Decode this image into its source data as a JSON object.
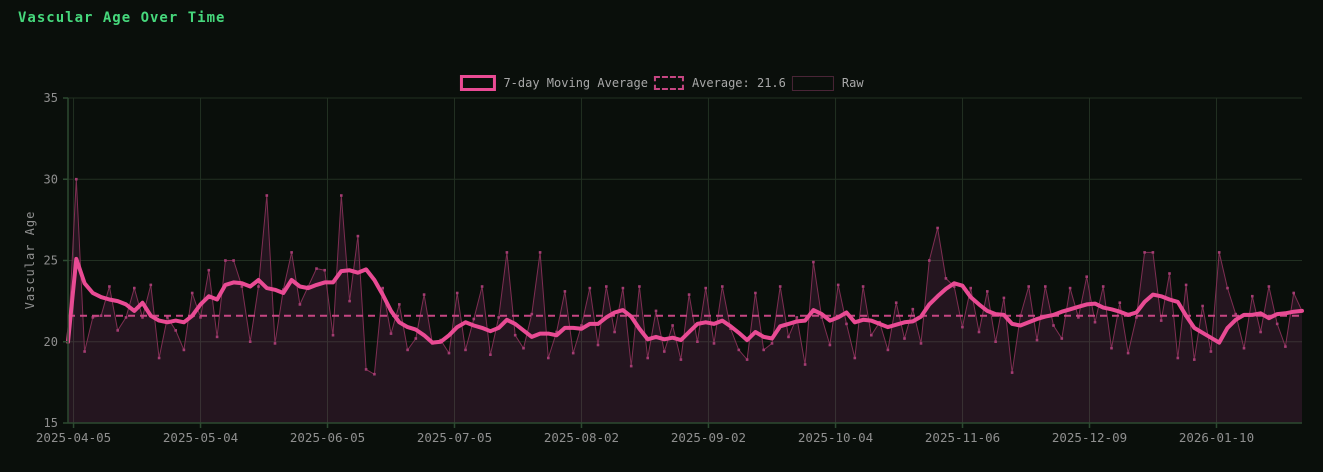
{
  "title": "Vascular Age Over Time",
  "legend": [
    {
      "label": "7-day Moving Average",
      "swatch": "solid"
    },
    {
      "label": "Average: 21.6",
      "swatch": "dashed"
    },
    {
      "label": "Raw",
      "swatch": "raw"
    }
  ],
  "colors": {
    "background": "#0a0f0b",
    "title": "#46d87c",
    "grid": "#223022",
    "spine": "#2d4a31",
    "tick_label": "#8f8f8f",
    "legend_text": "#a8a8a8",
    "ma_line": "#e94b94",
    "avg_line": "#c64683",
    "raw_line": "#7e2e52",
    "raw_marker": "#a43c72",
    "raw_fill": "rgba(199,62,153,0.14)"
  },
  "chart_data": {
    "type": "line",
    "title": "Vascular Age Over Time",
    "xlabel": "",
    "ylabel": "Vascular Age",
    "ylim": [
      15,
      35
    ],
    "yticks": [
      15,
      20,
      25,
      30,
      35
    ],
    "x_tick_labels": [
      "2025-04-05",
      "2025-05-04",
      "2025-06-05",
      "2025-07-05",
      "2025-08-02",
      "2025-09-02",
      "2025-10-04",
      "2025-11-06",
      "2025-12-09",
      "2026-01-10"
    ],
    "x_tick_positions": [
      0.0045,
      0.1074,
      0.2103,
      0.3132,
      0.4161,
      0.519,
      0.622,
      0.7249,
      0.8278,
      0.9307
    ],
    "average": 21.6,
    "grid": true,
    "legend_position": "top-center",
    "series": [
      {
        "name": "7-day Moving Average",
        "values": [
          20.0,
          25.1,
          23.6,
          23.0,
          22.75,
          22.6,
          22.5,
          22.3,
          21.9,
          22.4,
          21.6,
          21.3,
          21.2,
          21.3,
          21.2,
          21.6,
          22.3,
          22.8,
          22.6,
          23.5,
          23.65,
          23.6,
          23.4,
          23.8,
          23.3,
          23.2,
          23.0,
          23.8,
          23.4,
          23.3,
          23.5,
          23.65,
          23.65,
          24.35,
          24.4,
          24.25,
          24.45,
          23.8,
          22.9,
          21.9,
          21.2,
          20.9,
          20.75,
          20.4,
          19.95,
          20.0,
          20.4,
          20.9,
          21.2,
          21.0,
          20.85,
          20.65,
          20.85,
          21.35,
          21.1,
          20.7,
          20.3,
          20.5,
          20.5,
          20.4,
          20.85,
          20.85,
          20.8,
          21.1,
          21.1,
          21.5,
          21.8,
          21.95,
          21.55,
          20.8,
          20.15,
          20.3,
          20.15,
          20.25,
          20.1,
          20.6,
          21.1,
          21.2,
          21.1,
          21.3,
          20.95,
          20.55,
          20.1,
          20.6,
          20.3,
          20.2,
          20.95,
          21.1,
          21.25,
          21.3,
          21.95,
          21.7,
          21.3,
          21.5,
          21.8,
          21.2,
          21.35,
          21.3,
          21.1,
          20.9,
          21.05,
          21.2,
          21.25,
          21.55,
          22.3,
          22.8,
          23.25,
          23.6,
          23.45,
          22.75,
          22.3,
          21.9,
          21.7,
          21.65,
          21.1,
          21.0,
          21.2,
          21.4,
          21.55,
          21.65,
          21.85,
          22.0,
          22.15,
          22.3,
          22.35,
          22.1,
          22.0,
          21.85,
          21.65,
          21.8,
          22.45,
          22.9,
          22.8,
          22.6,
          22.45,
          21.6,
          20.85,
          20.55,
          20.25,
          19.95,
          20.85,
          21.35,
          21.65,
          21.65,
          21.75,
          21.45,
          21.7,
          21.75,
          21.85,
          21.9
        ]
      },
      {
        "name": "Raw",
        "values": [
          20.0,
          30.0,
          19.4,
          21.5,
          21.6,
          23.4,
          20.7,
          21.5,
          23.3,
          21.5,
          23.5,
          19.0,
          21.5,
          20.7,
          19.5,
          23.0,
          21.5,
          24.4,
          20.3,
          25.0,
          25.0,
          23.4,
          20.0,
          23.4,
          29.0,
          19.9,
          23.2,
          25.5,
          22.3,
          23.4,
          24.5,
          24.4,
          20.4,
          29.0,
          22.5,
          26.5,
          18.3,
          18.0,
          23.3,
          20.5,
          22.3,
          19.5,
          20.2,
          22.9,
          19.9,
          20.1,
          19.3,
          23.0,
          19.5,
          21.4,
          23.4,
          19.2,
          21.5,
          25.5,
          20.4,
          19.6,
          21.7,
          25.5,
          19.0,
          20.6,
          23.1,
          19.3,
          21.0,
          23.3,
          19.8,
          23.4,
          20.6,
          23.3,
          18.5,
          23.4,
          19.0,
          21.9,
          19.4,
          21.0,
          18.9,
          22.9,
          20.0,
          23.3,
          19.9,
          23.4,
          20.8,
          19.5,
          18.9,
          23.0,
          19.5,
          19.9,
          23.4,
          20.3,
          21.5,
          18.6,
          24.9,
          21.5,
          19.8,
          23.5,
          21.1,
          19.0,
          23.4,
          20.4,
          21.2,
          19.5,
          22.4,
          20.2,
          22.0,
          19.9,
          25.0,
          27.0,
          23.9,
          23.4,
          20.9,
          23.3,
          20.6,
          23.1,
          20.0,
          22.7,
          18.1,
          21.6,
          23.4,
          20.1,
          23.4,
          21.0,
          20.2,
          23.3,
          21.5,
          24.0,
          21.2,
          23.4,
          19.6,
          22.4,
          19.3,
          21.5,
          25.5,
          25.5,
          21.3,
          24.2,
          19.0,
          23.5,
          18.9,
          22.2,
          19.4,
          25.5,
          23.3,
          21.7,
          19.6,
          22.8,
          20.6,
          23.4,
          21.1,
          19.7,
          23.0,
          21.9
        ]
      }
    ]
  }
}
